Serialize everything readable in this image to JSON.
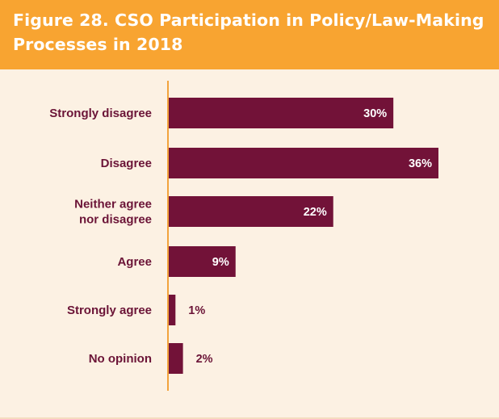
{
  "header": {
    "title": "Figure 28. CSO Participation in Policy/Law-Making Processes in 2018"
  },
  "colors": {
    "header_bg": "#f8a431",
    "panel_bg": "#fcf1e3",
    "bar": "#721238",
    "axis": "#f2a33d",
    "label": "#6b1437",
    "value_inside": "#ffffff",
    "value_outside": "#6b1437"
  },
  "chart_data": {
    "type": "bar",
    "orientation": "horizontal",
    "title": "Figure 28. CSO Participation in Policy/Law-Making Processes in 2018",
    "categories": [
      "Strongly disagree",
      "Disagree",
      "Neither agree nor disagree",
      "Agree",
      "Strongly agree",
      "No opinion"
    ],
    "category_lines": [
      [
        "Strongly disagree"
      ],
      [
        "Disagree"
      ],
      [
        "Neither agree",
        "nor disagree"
      ],
      [
        "Agree"
      ],
      [
        "Strongly agree"
      ],
      [
        "No opinion"
      ]
    ],
    "values": [
      30,
      36,
      22,
      9,
      1,
      2
    ],
    "value_labels": [
      "30%",
      "36%",
      "22%",
      "9%",
      "1%",
      "2%"
    ],
    "unit": "%",
    "xlim": [
      0,
      36
    ],
    "grid": false,
    "legend": "none"
  }
}
